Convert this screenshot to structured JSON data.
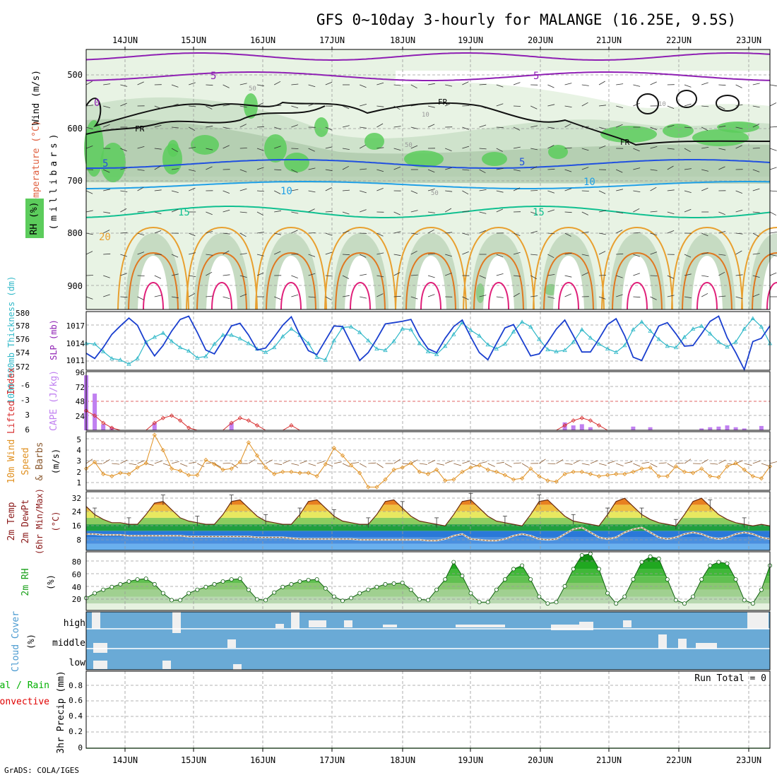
{
  "title": "GFS 0~10day 3-hourly for MALANGE (16.25E, 9.5S)",
  "credit": "GrADS: COLA/IGES",
  "date_labels": [
    "14JUN",
    "15JUN",
    "16JUN",
    "17JUN",
    "18JUN",
    "19JUN",
    "20JUN",
    "21JUN",
    "22JUN",
    "23JUN"
  ],
  "colors": {
    "title": "#000000",
    "grid": "#9a9a9a",
    "rh_light": "#e8f3e4",
    "rh_mid": "#cfe3cc",
    "rh_dark": "#a9c6a6",
    "rh_green": "#5ccc5c",
    "temp_purple": "#8e1fb3",
    "temp_blue": "#2050e0",
    "temp_lightblue": "#20a0e6",
    "temp_teal": "#10c090",
    "temp_orange": "#e8a030",
    "temp_darkorange": "#e07820",
    "temp_magenta": "#e0207a",
    "slp": "#1a3fcf",
    "thickness": "#30b8c8",
    "lifted": "#d83030",
    "cape": "#c080f0",
    "wind10m": "#e09020",
    "dewpt": "#8b5a30",
    "rh2m": "#18a018",
    "cloud": "#6aaad6",
    "cloud_clear": "#f0f0f0",
    "precip_green": "#00b000",
    "precip_red": "#e00000"
  },
  "panels": {
    "upper_air": {
      "ylabel_wind": "Wind (m/s)",
      "ylabel_temp": "Temperature (°C)",
      "ylabel_rh": "RH (%)",
      "ylabel_pressure": "(millibars)",
      "y_ticks": [
        "500",
        "600",
        "700",
        "800",
        "900"
      ],
      "contour_labels": [
        "5",
        "5",
        "0",
        "FR",
        "FR",
        "FR",
        "5",
        "5",
        "10",
        "10",
        "15",
        "15",
        "20",
        "50",
        "50",
        "50",
        "10",
        "10"
      ]
    },
    "slp_thickness": {
      "ylabel_thickness": "1000-500mb Thickness (dm)",
      "ylabel_slp": "SLP (mb)",
      "left_ticks": [
        "580",
        "578",
        "576",
        "574",
        "572"
      ],
      "right_ticks": [
        "1017",
        "1014",
        "1011"
      ]
    },
    "li_cape": {
      "ylabel_li": "Lifted Index",
      "ylabel_cape": "CAPE (J/kg)",
      "left_ticks": [
        "-6",
        "-3",
        "0",
        "3",
        "6"
      ],
      "right_ticks": [
        "96",
        "72",
        "48",
        "24"
      ]
    },
    "wind10m": {
      "ylabel1": "10m Wind",
      "ylabel2": "Speed",
      "ylabel3": "& Barbs",
      "unit": "(m/s)",
      "ticks": [
        "5",
        "4",
        "3",
        "2",
        "1"
      ]
    },
    "temp2m": {
      "ylabel1": "2m Temp",
      "ylabel2": "2m DewPt",
      "ylabel3": "(6hr Min/Max)",
      "unit": "(°C)",
      "ticks": [
        "32",
        "24",
        "16",
        "8"
      ]
    },
    "rh2m": {
      "ylabel": "2m RH",
      "unit": "(%)",
      "ticks": [
        "80",
        "60",
        "40",
        "20"
      ]
    },
    "cloud": {
      "ylabel": "Cloud Cover",
      "unit": "(%)",
      "levels": [
        "high",
        "middle",
        "low"
      ]
    },
    "precip": {
      "ylabel_total": "Total / Rain",
      "ylabel_conv": "Convective",
      "ylabel_precip": "3hr Precip (mm)",
      "ticks": [
        "0.8",
        "0.6",
        "0.4",
        "0.2",
        "0"
      ],
      "run_total": "Run Total = 0"
    }
  },
  "chart_data": [
    {
      "type": "line",
      "name": "SLP",
      "y_unit": "mb",
      "x_start": "13JUN 12Z",
      "x_step_hours": 3,
      "values": [
        1012.6,
        1011.8,
        1013.5,
        1015.5,
        1016.8,
        1018.0,
        1016.9,
        1014.2,
        1012.2,
        1013.8,
        1016.0,
        1017.8,
        1018.3,
        1015.8,
        1013.1,
        1012.5,
        1014.6,
        1016.8,
        1017.2,
        1015.4,
        1013.1,
        1013.4,
        1015.1,
        1016.9,
        1018.2,
        1015.4,
        1013.0,
        1012.4,
        1014.6,
        1016.8,
        1016.7,
        1014.1,
        1011.5,
        1012.7,
        1014.8,
        1017.1,
        1017.3,
        1017.5,
        1017.8,
        1015.2,
        1013.3,
        1012.7,
        1014.9,
        1016.7,
        1017.7,
        1015.1,
        1012.7,
        1011.6,
        1014.1,
        1016.5,
        1017.0,
        1014.6,
        1012.2,
        1012.5,
        1014.3,
        1016.3,
        1017.7,
        1015.3,
        1012.8,
        1012.8,
        1014.8,
        1017.0,
        1017.9,
        1015.3,
        1012.0,
        1011.5,
        1014.2,
        1016.8,
        1017.3,
        1015.6,
        1013.7,
        1013.8,
        1015.6,
        1017.5,
        1018.3,
        1015.0,
        1012.7,
        1010.1,
        1014.4,
        1014.9,
        1016.8
      ],
      "ylim": [
        1010,
        1019
      ]
    },
    {
      "type": "line",
      "name": "1000-500mb Thickness",
      "y_unit": "dm",
      "x_start": "13JUN 12Z",
      "x_step_hours": 3,
      "values": [
        575.4,
        575.3,
        574.2,
        573.2,
        573.0,
        572.4,
        573.2,
        575.6,
        576.3,
        576.9,
        575.7,
        574.8,
        574.3,
        573.3,
        573.5,
        575.3,
        576.6,
        576.6,
        576.1,
        575.4,
        574.6,
        574.1,
        574.8,
        576.4,
        577.5,
        576.6,
        575.4,
        573.4,
        573.0,
        575.8,
        577.7,
        577.8,
        577.0,
        575.8,
        574.6,
        574.4,
        575.7,
        577.5,
        577.4,
        575.4,
        574.2,
        573.8,
        575.0,
        576.7,
        578.4,
        577.3,
        576.5,
        575.2,
        574.6,
        575.3,
        577.1,
        578.5,
        577.8,
        576.0,
        574.5,
        574.2,
        574.4,
        575.6,
        577.4,
        576.2,
        575.3,
        574.6,
        574.1,
        575.1,
        577.4,
        578.5,
        577.2,
        576.0,
        575.0,
        574.8,
        576.3,
        577.5,
        577.9,
        576.8,
        575.6,
        574.9,
        575.6,
        577.5,
        579.0,
        577.8,
        575.4
      ],
      "ylim": [
        571.5,
        580
      ]
    },
    {
      "type": "line",
      "name": "10m Wind Speed",
      "y_unit": "m/s",
      "x_start": "13JUN 12Z",
      "x_step_hours": 3,
      "values": [
        2.3,
        2.9,
        1.8,
        1.6,
        1.9,
        1.8,
        2.4,
        2.8,
        5.4,
        4.0,
        2.3,
        2.1,
        1.7,
        1.7,
        3.1,
        2.7,
        2.2,
        2.3,
        2.9,
        4.7,
        3.5,
        2.4,
        1.8,
        2.0,
        2.0,
        1.9,
        1.9,
        1.6,
        2.7,
        4.2,
        3.5,
        2.6,
        1.9,
        0.6,
        0.6,
        1.3,
        2.2,
        2.4,
        2.8,
        2.0,
        1.8,
        2.2,
        1.2,
        1.3,
        2.0,
        2.4,
        2.6,
        2.2,
        2.0,
        1.7,
        1.3,
        1.4,
        2.3,
        1.6,
        1.2,
        1.1,
        1.8,
        2.0,
        2.0,
        1.8,
        1.6,
        1.7,
        1.8,
        1.8,
        2.0,
        2.3,
        2.4,
        1.6,
        1.6,
        2.5,
        2.0,
        1.9,
        2.3,
        1.6,
        1.5,
        2.5,
        2.8,
        2.2,
        1.6,
        1.4,
        2.5
      ],
      "ylim": [
        0.3,
        5.7
      ]
    },
    {
      "type": "area",
      "name": "2m Temp",
      "y_unit": "°C",
      "x_start": "13JUN 12Z",
      "x_step_hours": 3,
      "values": [
        27,
        22,
        19,
        17,
        17,
        16,
        16,
        22,
        29,
        30,
        25,
        20,
        18,
        17,
        16,
        16,
        22,
        30,
        31,
        26,
        21,
        18,
        17,
        16,
        16,
        22,
        30,
        31,
        26,
        21,
        18,
        17,
        16,
        16,
        22,
        30,
        31,
        26,
        21,
        18,
        17,
        16,
        15,
        22,
        30,
        31,
        26,
        21,
        18,
        17,
        16,
        15,
        22,
        30,
        31,
        26,
        21,
        18,
        17,
        16,
        15,
        22,
        30,
        32,
        27,
        22,
        19,
        17,
        16,
        15,
        22,
        30,
        32,
        27,
        22,
        19,
        17,
        16,
        15,
        16,
        15
      ],
      "ylim": [
        0,
        36
      ]
    },
    {
      "type": "line",
      "name": "2m DewPt",
      "y_unit": "°C",
      "x_start": "13JUN 12Z",
      "x_step_hours": 3,
      "values": [
        10,
        10,
        9.5,
        9.5,
        9.5,
        9,
        9,
        9,
        9,
        9,
        9,
        9,
        8.5,
        8.5,
        8.5,
        8.5,
        8.5,
        8.5,
        8.5,
        8.5,
        8,
        8,
        8,
        8,
        7.5,
        7,
        7,
        7,
        7,
        7,
        7,
        7,
        6.5,
        6.5,
        6.5,
        6.5,
        6.5,
        6.5,
        6.5,
        6.5,
        6,
        6,
        7,
        9,
        10,
        7,
        6.5,
        6,
        6,
        7,
        9,
        10,
        9,
        7,
        6.5,
        7,
        10,
        13,
        14,
        11,
        8,
        7,
        8,
        11,
        13,
        14,
        11,
        8,
        7,
        8,
        10,
        11,
        10,
        8,
        7,
        8,
        10,
        11,
        10,
        8,
        7
      ],
      "ylim": [
        0,
        36
      ]
    },
    {
      "type": "area",
      "name": "2m RH",
      "y_unit": "%",
      "x_start": "13JUN 12Z",
      "x_step_hours": 3,
      "values": [
        28,
        35,
        40,
        44,
        48,
        52,
        55,
        56,
        48,
        35,
        25,
        25,
        35,
        40,
        44,
        48,
        52,
        55,
        56,
        40,
        26,
        25,
        36,
        44,
        48,
        52,
        54,
        55,
        42,
        30,
        24,
        28,
        35,
        40,
        44,
        48,
        49,
        50,
        40,
        26,
        25,
        40,
        55,
        80,
        60,
        35,
        22,
        22,
        40,
        55,
        70,
        75,
        55,
        30,
        20,
        22,
        45,
        70,
        90,
        92,
        70,
        35,
        20,
        30,
        55,
        80,
        88,
        85,
        55,
        25,
        20,
        30,
        55,
        75,
        80,
        78,
        55,
        25,
        20,
        40,
        75
      ],
      "ylim": [
        10,
        95
      ]
    },
    {
      "type": "bar",
      "name": "CAPE",
      "y_unit": "J/kg",
      "x_start": "13JUN 12Z",
      "x_step_hours": 3,
      "values": [
        90,
        60,
        10,
        5,
        0,
        0,
        0,
        0,
        12,
        0,
        0,
        0,
        0,
        0,
        0,
        0,
        0,
        12,
        0,
        0,
        0,
        0,
        0,
        0,
        0,
        0,
        0,
        0,
        0,
        0,
        0,
        0,
        0,
        0,
        0,
        0,
        0,
        0,
        0,
        0,
        0,
        0,
        0,
        0,
        0,
        0,
        0,
        0,
        0,
        0,
        0,
        0,
        0,
        0,
        0,
        0,
        13,
        8,
        10,
        5,
        0,
        0,
        0,
        0,
        6,
        0,
        5,
        0,
        0,
        0,
        0,
        0,
        3,
        5,
        6,
        8,
        5,
        3,
        0,
        7,
        0
      ],
      "ylim": [
        0,
        96
      ]
    },
    {
      "type": "line",
      "name": "Lifted Index",
      "x_start": "13JUN 12Z",
      "x_step_hours": 3,
      "values": [
        2,
        3,
        4.5,
        5.5,
        6,
        6,
        6,
        6,
        4.5,
        3.5,
        3,
        4,
        5.5,
        6,
        6,
        6,
        6,
        4.5,
        3.5,
        4,
        5,
        6,
        6,
        6,
        5,
        6,
        6,
        6,
        6,
        6,
        6,
        6,
        6,
        6,
        6,
        6,
        6,
        6,
        6,
        6,
        6,
        6,
        6,
        6,
        6,
        6,
        6,
        6,
        6,
        6,
        6,
        6,
        6,
        6,
        6,
        6,
        5,
        4,
        3.5,
        4,
        5,
        6,
        6,
        6,
        6,
        6,
        6,
        6,
        6,
        6,
        6,
        6,
        6,
        6,
        6,
        6,
        6,
        6,
        6,
        6,
        6
      ],
      "ylim": [
        -6,
        6
      ]
    },
    {
      "type": "line",
      "name": "3hr Precip",
      "y_unit": "mm",
      "x": [
        "13JUN 12Z",
        "23JUN 12Z"
      ],
      "values": [
        0,
        0
      ],
      "ylim": [
        0,
        0.95
      ]
    }
  ]
}
